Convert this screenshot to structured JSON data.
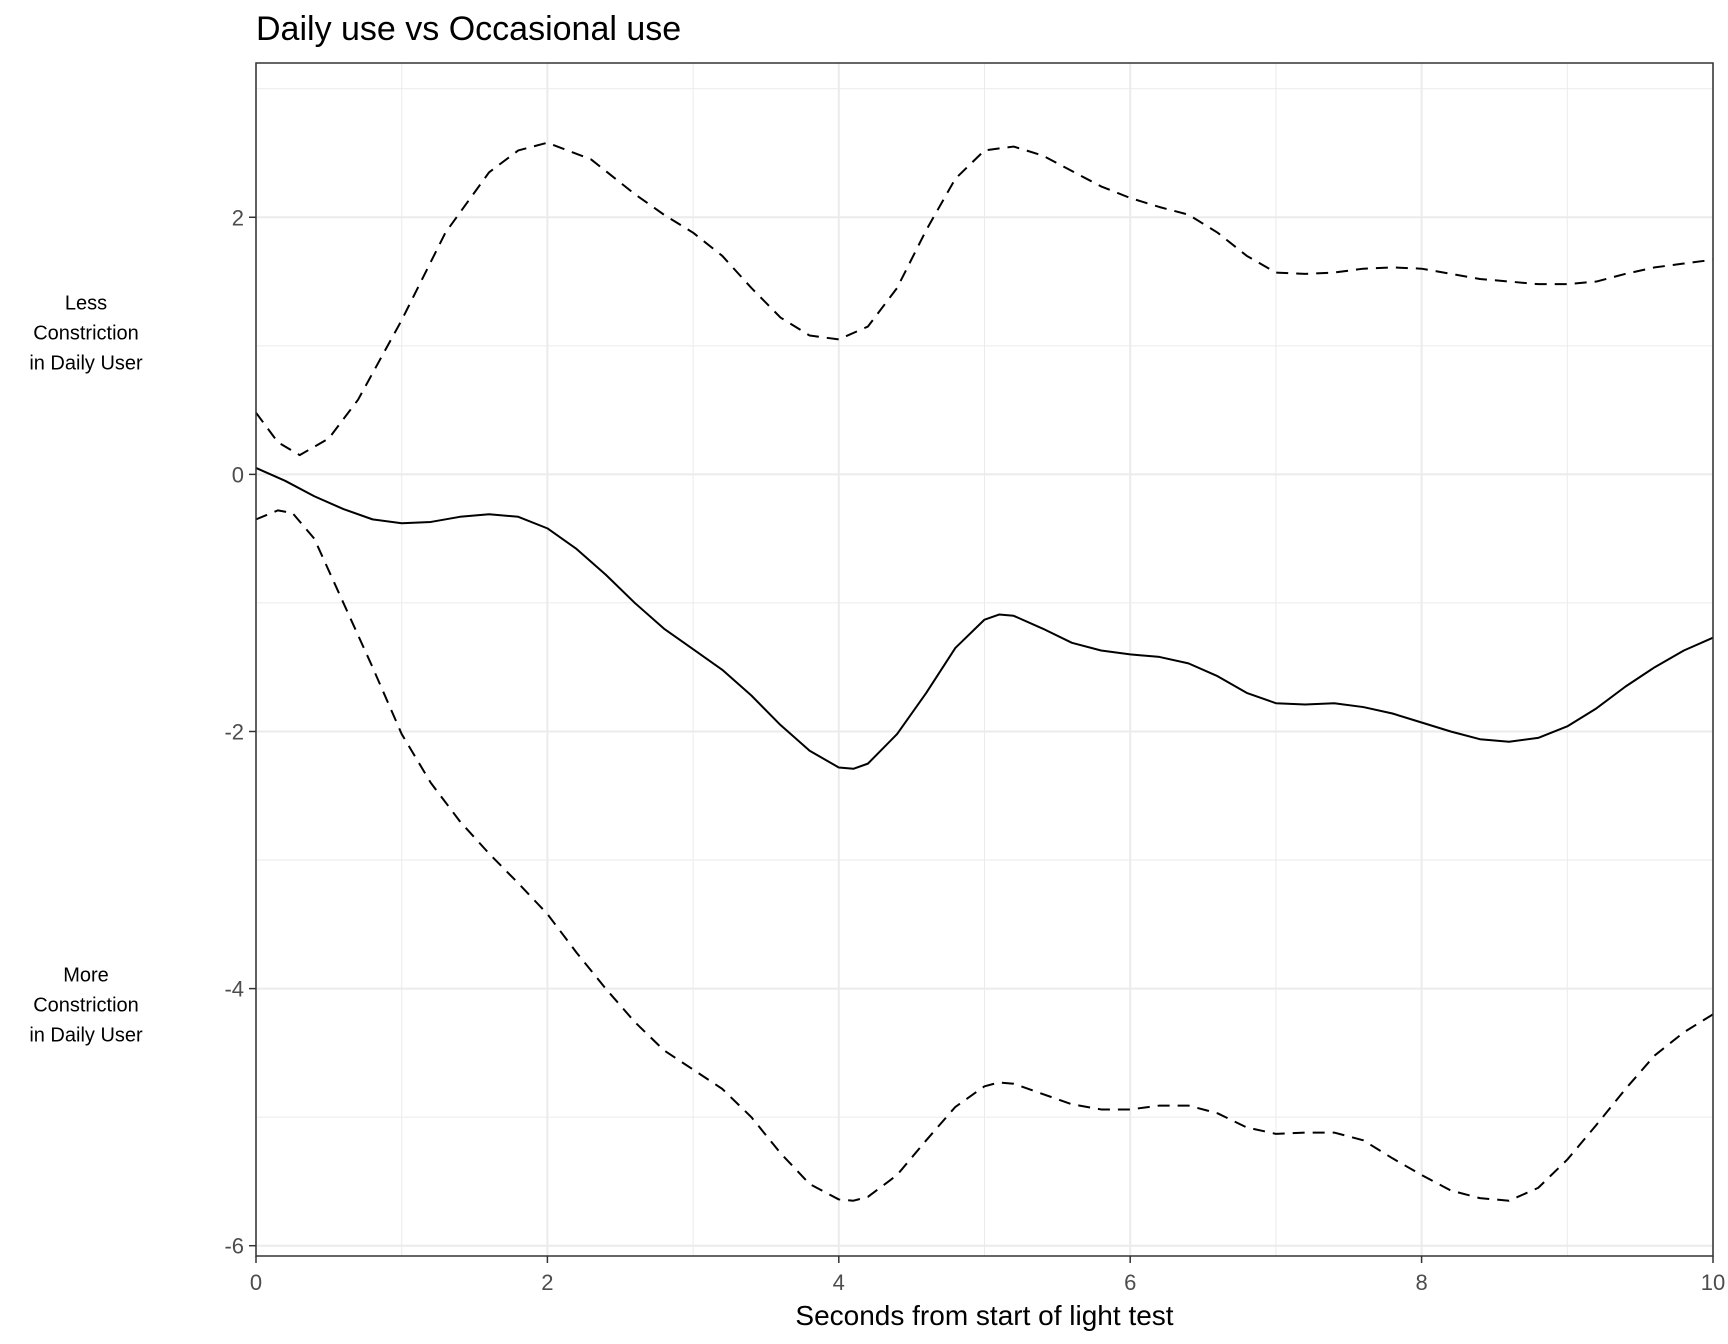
{
  "chart_data": {
    "type": "line",
    "title": "Daily use vs Occasional use",
    "xlabel": "Seconds from start of light test",
    "ylabel": "",
    "xlim": [
      0,
      10
    ],
    "ylim": [
      -6.08,
      3.2
    ],
    "x_ticks": [
      0,
      2,
      4,
      6,
      8,
      10
    ],
    "y_ticks": [
      -6,
      -4,
      -2,
      0,
      2
    ],
    "x_tick_labels": [
      "0",
      "2",
      "4",
      "6",
      "8",
      "10"
    ],
    "y_tick_labels": [
      "-6",
      "-4",
      "-2",
      "0",
      "2"
    ],
    "grid": true,
    "legend": "none",
    "colors": {
      "line": "#000000",
      "grid": "#ebebeb",
      "tick_text": "#4d4d4d"
    },
    "annotations": [
      {
        "id": "less",
        "lines": [
          "Less",
          "Constriction",
          "in Daily User"
        ],
        "y": 1.05
      },
      {
        "id": "more",
        "lines": [
          "More",
          "Constriction",
          "in Daily User"
        ],
        "y": -4.18
      }
    ],
    "series": [
      {
        "id": "upper-ci",
        "style": "dashed",
        "points": [
          [
            0,
            0.48
          ],
          [
            0.15,
            0.25
          ],
          [
            0.3,
            0.15
          ],
          [
            0.5,
            0.28
          ],
          [
            0.7,
            0.58
          ],
          [
            1.0,
            1.2
          ],
          [
            1.3,
            1.88
          ],
          [
            1.6,
            2.35
          ],
          [
            1.8,
            2.52
          ],
          [
            2.0,
            2.58
          ],
          [
            2.3,
            2.45
          ],
          [
            2.6,
            2.18
          ],
          [
            2.8,
            2.02
          ],
          [
            3.0,
            1.88
          ],
          [
            3.2,
            1.7
          ],
          [
            3.4,
            1.45
          ],
          [
            3.6,
            1.22
          ],
          [
            3.8,
            1.08
          ],
          [
            4.0,
            1.05
          ],
          [
            4.2,
            1.15
          ],
          [
            4.4,
            1.45
          ],
          [
            4.6,
            1.9
          ],
          [
            4.8,
            2.3
          ],
          [
            5.0,
            2.52
          ],
          [
            5.2,
            2.55
          ],
          [
            5.4,
            2.48
          ],
          [
            5.6,
            2.36
          ],
          [
            5.8,
            2.24
          ],
          [
            6.0,
            2.15
          ],
          [
            6.2,
            2.08
          ],
          [
            6.4,
            2.02
          ],
          [
            6.6,
            1.88
          ],
          [
            6.8,
            1.7
          ],
          [
            7.0,
            1.57
          ],
          [
            7.2,
            1.56
          ],
          [
            7.4,
            1.57
          ],
          [
            7.6,
            1.6
          ],
          [
            7.8,
            1.61
          ],
          [
            8.0,
            1.6
          ],
          [
            8.2,
            1.56
          ],
          [
            8.4,
            1.52
          ],
          [
            8.6,
            1.5
          ],
          [
            8.8,
            1.48
          ],
          [
            9.0,
            1.48
          ],
          [
            9.2,
            1.5
          ],
          [
            9.4,
            1.56
          ],
          [
            9.6,
            1.61
          ],
          [
            9.8,
            1.64
          ],
          [
            10.0,
            1.67
          ]
        ]
      },
      {
        "id": "estimate",
        "style": "solid",
        "points": [
          [
            0,
            0.05
          ],
          [
            0.2,
            -0.05
          ],
          [
            0.4,
            -0.17
          ],
          [
            0.6,
            -0.27
          ],
          [
            0.8,
            -0.35
          ],
          [
            1.0,
            -0.38
          ],
          [
            1.2,
            -0.37
          ],
          [
            1.4,
            -0.33
          ],
          [
            1.6,
            -0.31
          ],
          [
            1.8,
            -0.33
          ],
          [
            2.0,
            -0.42
          ],
          [
            2.2,
            -0.58
          ],
          [
            2.4,
            -0.78
          ],
          [
            2.6,
            -1.0
          ],
          [
            2.8,
            -1.2
          ],
          [
            3.0,
            -1.36
          ],
          [
            3.2,
            -1.52
          ],
          [
            3.4,
            -1.72
          ],
          [
            3.6,
            -1.95
          ],
          [
            3.8,
            -2.15
          ],
          [
            4.0,
            -2.28
          ],
          [
            4.1,
            -2.29
          ],
          [
            4.2,
            -2.25
          ],
          [
            4.4,
            -2.02
          ],
          [
            4.6,
            -1.7
          ],
          [
            4.8,
            -1.35
          ],
          [
            5.0,
            -1.13
          ],
          [
            5.1,
            -1.09
          ],
          [
            5.2,
            -1.1
          ],
          [
            5.4,
            -1.2
          ],
          [
            5.6,
            -1.31
          ],
          [
            5.8,
            -1.37
          ],
          [
            6.0,
            -1.4
          ],
          [
            6.2,
            -1.42
          ],
          [
            6.4,
            -1.47
          ],
          [
            6.6,
            -1.57
          ],
          [
            6.8,
            -1.7
          ],
          [
            7.0,
            -1.78
          ],
          [
            7.2,
            -1.79
          ],
          [
            7.4,
            -1.78
          ],
          [
            7.6,
            -1.81
          ],
          [
            7.8,
            -1.86
          ],
          [
            8.0,
            -1.93
          ],
          [
            8.2,
            -2.0
          ],
          [
            8.4,
            -2.06
          ],
          [
            8.6,
            -2.08
          ],
          [
            8.8,
            -2.05
          ],
          [
            9.0,
            -1.96
          ],
          [
            9.2,
            -1.82
          ],
          [
            9.4,
            -1.65
          ],
          [
            9.6,
            -1.5
          ],
          [
            9.8,
            -1.37
          ],
          [
            10.0,
            -1.27
          ]
        ]
      },
      {
        "id": "lower-ci",
        "style": "dashed",
        "points": [
          [
            0,
            -0.35
          ],
          [
            0.15,
            -0.28
          ],
          [
            0.25,
            -0.3
          ],
          [
            0.4,
            -0.5
          ],
          [
            0.6,
            -1.0
          ],
          [
            0.8,
            -1.5
          ],
          [
            1.0,
            -2.02
          ],
          [
            1.2,
            -2.4
          ],
          [
            1.4,
            -2.7
          ],
          [
            1.6,
            -2.95
          ],
          [
            1.8,
            -3.18
          ],
          [
            2.0,
            -3.42
          ],
          [
            2.2,
            -3.72
          ],
          [
            2.4,
            -4.0
          ],
          [
            2.6,
            -4.26
          ],
          [
            2.8,
            -4.48
          ],
          [
            3.0,
            -4.63
          ],
          [
            3.2,
            -4.78
          ],
          [
            3.4,
            -5.0
          ],
          [
            3.6,
            -5.28
          ],
          [
            3.8,
            -5.52
          ],
          [
            4.0,
            -5.64
          ],
          [
            4.1,
            -5.65
          ],
          [
            4.2,
            -5.62
          ],
          [
            4.4,
            -5.45
          ],
          [
            4.6,
            -5.18
          ],
          [
            4.8,
            -4.92
          ],
          [
            5.0,
            -4.76
          ],
          [
            5.1,
            -4.73
          ],
          [
            5.2,
            -4.74
          ],
          [
            5.4,
            -4.82
          ],
          [
            5.6,
            -4.9
          ],
          [
            5.8,
            -4.94
          ],
          [
            6.0,
            -4.94
          ],
          [
            6.2,
            -4.91
          ],
          [
            6.4,
            -4.91
          ],
          [
            6.6,
            -4.97
          ],
          [
            6.8,
            -5.08
          ],
          [
            7.0,
            -5.13
          ],
          [
            7.2,
            -5.12
          ],
          [
            7.4,
            -5.12
          ],
          [
            7.6,
            -5.18
          ],
          [
            7.8,
            -5.32
          ],
          [
            8.0,
            -5.45
          ],
          [
            8.2,
            -5.57
          ],
          [
            8.4,
            -5.63
          ],
          [
            8.6,
            -5.65
          ],
          [
            8.8,
            -5.55
          ],
          [
            9.0,
            -5.33
          ],
          [
            9.2,
            -5.06
          ],
          [
            9.4,
            -4.78
          ],
          [
            9.6,
            -4.52
          ],
          [
            9.8,
            -4.34
          ],
          [
            10.0,
            -4.2
          ]
        ]
      }
    ]
  }
}
